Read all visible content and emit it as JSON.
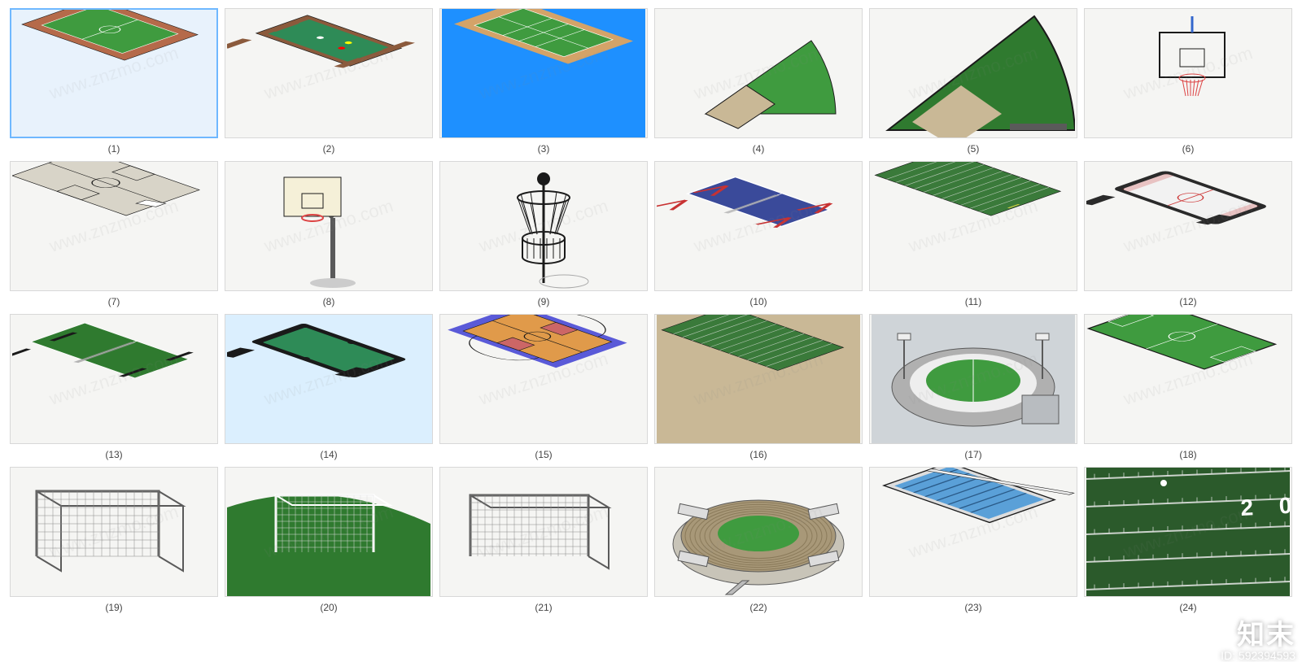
{
  "watermark": {
    "text": "知末",
    "id_label": "ID: 592394593"
  },
  "diag_watermark": "www.znzmo.com",
  "colors": {
    "grass": "#3f9b3f",
    "grass_dark": "#2f7a2f",
    "track": "#b56a4a",
    "wood": "#8b5a3c",
    "felt": "#2e8b57",
    "pool_blue": "#1e90ff",
    "court_blue": "#5a5ad8",
    "court_orange": "#e09a4a",
    "hockey_white": "#f2f2f2",
    "hockey_black": "#2a2a2a",
    "tt_blue": "#3a4a9a",
    "tt_red": "#c83232",
    "beige": "#c9b896",
    "gray": "#b0b0b0",
    "dark_gray": "#5a5a5a",
    "black": "#1a1a1a",
    "white": "#ffffff",
    "net": "#888888",
    "field_line": "#e8e8e8",
    "football_green": "#3a7a3a",
    "football_dark": "#2b5a2b"
  },
  "items": [
    {
      "n": "(1)",
      "kind": "stadium-track",
      "selected": "main"
    },
    {
      "n": "(2)",
      "kind": "pool-table-wood"
    },
    {
      "n": "(3)",
      "kind": "badminton-court"
    },
    {
      "n": "(4)",
      "kind": "baseball-field-small"
    },
    {
      "n": "(5)",
      "kind": "baseball-field-large"
    },
    {
      "n": "(6)",
      "kind": "basketball-hoop-simple"
    },
    {
      "n": "(7)",
      "kind": "basketball-court-gray"
    },
    {
      "n": "(8)",
      "kind": "basketball-hoop-pole"
    },
    {
      "n": "(9)",
      "kind": "disc-golf-basket"
    },
    {
      "n": "(10)",
      "kind": "tt-table-blue"
    },
    {
      "n": "(11)",
      "kind": "football-field-green"
    },
    {
      "n": "(12)",
      "kind": "air-hockey"
    },
    {
      "n": "(13)",
      "kind": "tt-table-green"
    },
    {
      "n": "(14)",
      "kind": "pool-table-black",
      "selected": "light"
    },
    {
      "n": "(15)",
      "kind": "basketball-court-color"
    },
    {
      "n": "(16)",
      "kind": "football-field-beige"
    },
    {
      "n": "(17)",
      "kind": "stadium-modern"
    },
    {
      "n": "(18)",
      "kind": "soccer-pitch"
    },
    {
      "n": "(19)",
      "kind": "soccer-goal-1"
    },
    {
      "n": "(20)",
      "kind": "soccer-goal-grass"
    },
    {
      "n": "(21)",
      "kind": "soccer-goal-2"
    },
    {
      "n": "(22)",
      "kind": "stadium-bowl"
    },
    {
      "n": "(23)",
      "kind": "swimming-pool"
    },
    {
      "n": "(24)",
      "kind": "football-closeup",
      "yard_text": "2 0"
    }
  ]
}
